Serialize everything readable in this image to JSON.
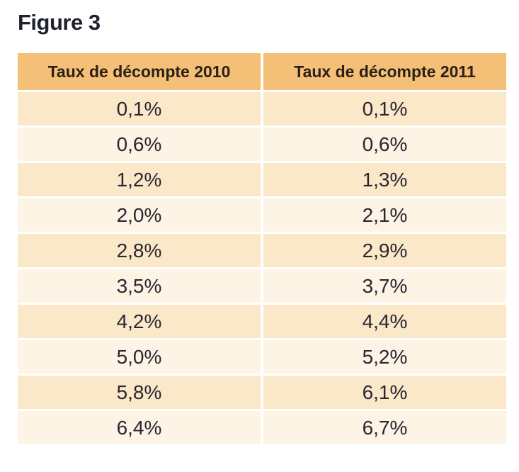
{
  "figure_title": "Figure 3",
  "colors": {
    "header_bg": "#f4c077",
    "header_text": "#2a2018",
    "row_dark": "#fae8c9",
    "row_light": "#fdf4e6",
    "title_text": "#20222e",
    "cell_text": "#2a2630",
    "gutter": "#ffffff"
  },
  "chart_data": {
    "type": "table",
    "title": "Figure 3",
    "columns": [
      "Taux de décompte 2010",
      "Taux de décompte 2011"
    ],
    "rows": [
      [
        "0,1%",
        "0,1%"
      ],
      [
        "0,6%",
        "0,6%"
      ],
      [
        "1,2%",
        "1,3%"
      ],
      [
        "2,0%",
        "2,1%"
      ],
      [
        "2,8%",
        "2,9%"
      ],
      [
        "3,5%",
        "3,7%"
      ],
      [
        "4,2%",
        "4,4%"
      ],
      [
        "5,0%",
        "5,2%"
      ],
      [
        "5,8%",
        "6,1%"
      ],
      [
        "6,4%",
        "6,7%"
      ]
    ],
    "series": [
      {
        "name": "Taux de décompte 2010",
        "values": [
          0.1,
          0.6,
          1.2,
          2.0,
          2.8,
          3.5,
          4.2,
          5.0,
          5.8,
          6.4
        ]
      },
      {
        "name": "Taux de décompte 2011",
        "values": [
          0.1,
          0.6,
          1.3,
          2.1,
          2.9,
          3.7,
          4.4,
          5.2,
          6.1,
          6.7
        ]
      }
    ],
    "value_unit": "%",
    "decimal_separator": ",",
    "layout": {
      "header_style": "orange-band",
      "row_striping": "dark/light cream alternating",
      "grid": "white gutters"
    }
  }
}
